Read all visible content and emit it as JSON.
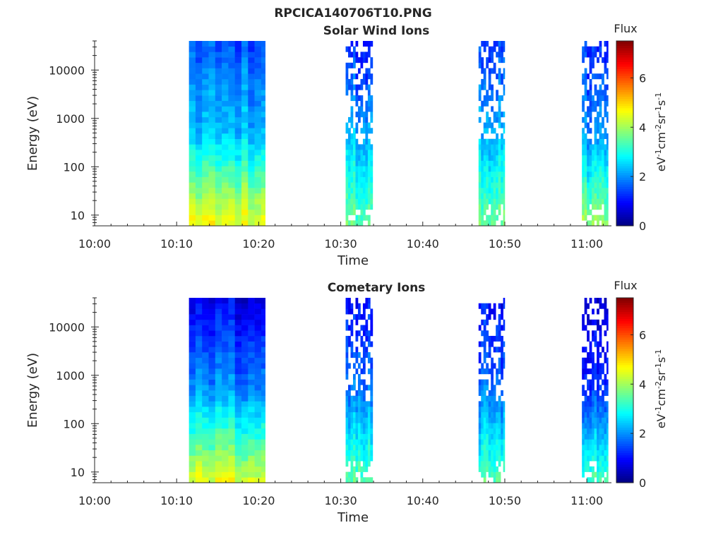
{
  "figure": {
    "title": "RPCICA140706T10.PNG"
  },
  "colors": {
    "colormap": [
      "#00007f",
      "#0000ff",
      "#007fff",
      "#00ffff",
      "#7fff7f",
      "#ffff00",
      "#ff7f00",
      "#ff0000",
      "#7f0000"
    ],
    "axis": "#262626"
  },
  "chart_data": [
    {
      "type": "heatmap",
      "title": "Solar Wind Ions",
      "xlabel": "Time",
      "ylabel": "Energy (eV)",
      "x_ticks": [
        "10:00",
        "10:10",
        "10:20",
        "10:30",
        "10:40",
        "10:50",
        "11:00"
      ],
      "y_ticks": [
        "10",
        "100",
        "1000",
        "10000"
      ],
      "y_scale": "log",
      "ylim": [
        6,
        40000
      ],
      "xlim_minutes": [
        0,
        63
      ],
      "colorbar": {
        "label_top": "Flux",
        "label": "eV-1cm-2sr-1s-1",
        "ticks": [
          "0",
          "2",
          "4",
          "6"
        ],
        "range": [
          0,
          7.5
        ]
      },
      "data_intervals_minutes": [
        [
          11.5,
          20.8
        ],
        [
          30.6,
          33.9
        ],
        [
          46.8,
          50.0
        ],
        [
          59.4,
          62.6
        ]
      ],
      "flux_profile_by_interval": [
        {
          "low_energy": 4.6,
          "mid_energy": 2.4,
          "high_energy": 1.6
        },
        {
          "low_energy": 3.6,
          "mid_energy": 2.3,
          "high_energy": 1.2
        },
        {
          "low_energy": 3.6,
          "mid_energy": 2.2,
          "high_energy": 1.3
        },
        {
          "low_energy": 3.9,
          "mid_energy": 2.0,
          "high_energy": 1.2
        }
      ]
    },
    {
      "type": "heatmap",
      "title": "Cometary Ions",
      "xlabel": "Time",
      "ylabel": "Energy (eV)",
      "x_ticks": [
        "10:00",
        "10:10",
        "10:20",
        "10:30",
        "10:40",
        "10:50",
        "11:00"
      ],
      "y_ticks": [
        "10",
        "100",
        "1000",
        "10000"
      ],
      "y_scale": "log",
      "ylim": [
        6,
        40000
      ],
      "xlim_minutes": [
        0,
        63
      ],
      "colorbar": {
        "label_top": "Flux",
        "label": "eV-1cm-2sr-1s-1",
        "ticks": [
          "0",
          "2",
          "4",
          "6"
        ],
        "range": [
          0,
          7.5
        ]
      },
      "data_intervals_minutes": [
        [
          11.5,
          20.8
        ],
        [
          30.6,
          33.9
        ],
        [
          46.8,
          50.0
        ],
        [
          59.4,
          62.6
        ]
      ],
      "flux_profile_by_interval": [
        {
          "low_energy": 4.4,
          "mid_energy": 2.0,
          "high_energy": 0.8
        },
        {
          "low_energy": 3.4,
          "mid_energy": 1.8,
          "high_energy": 1.0
        },
        {
          "low_energy": 3.4,
          "mid_energy": 1.8,
          "high_energy": 1.0
        },
        {
          "low_energy": 3.4,
          "mid_energy": 1.4,
          "high_energy": 0.7
        }
      ]
    }
  ]
}
